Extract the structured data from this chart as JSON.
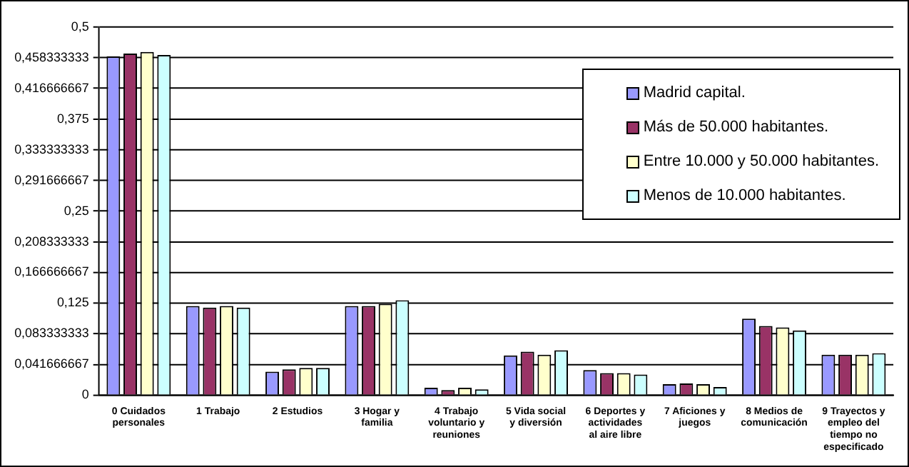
{
  "chart_data": {
    "type": "bar",
    "categories": [
      "0 Cuidados personales",
      "1 Trabajo",
      "2 Estudios",
      "3 Hogar y familia",
      "4 Trabajo voluntario y reuniones",
      "5 Vida social y diversión",
      "6 Deportes y actividades al aire libre",
      "7 Aficiones y juegos",
      "8 Medios de comunicación",
      "9 Trayectos y empleo del tiempo no especificado"
    ],
    "series": [
      {
        "name": "Madrid capital.",
        "color": "#9999ff",
        "values": [
          0.46,
          0.121,
          0.032,
          0.121,
          0.01,
          0.054,
          0.034,
          0.015,
          0.104,
          0.055
        ]
      },
      {
        "name": "Más de 50.000 habitantes.",
        "color": "#993366",
        "values": [
          0.464,
          0.119,
          0.035,
          0.121,
          0.007,
          0.059,
          0.03,
          0.016,
          0.094,
          0.055
        ]
      },
      {
        "name": "Entre 10.000 y 50.000 habitantes.",
        "color": "#ffffcc",
        "values": [
          0.466,
          0.121,
          0.037,
          0.124,
          0.01,
          0.055,
          0.03,
          0.015,
          0.092,
          0.055
        ]
      },
      {
        "name": "Menos de 10.000 habitantes.",
        "color": "#ccffff",
        "values": [
          0.462,
          0.119,
          0.037,
          0.129,
          0.008,
          0.061,
          0.028,
          0.011,
          0.088,
          0.057
        ]
      }
    ],
    "ylim": [
      0,
      0.5
    ],
    "yticks": [
      {
        "value": 0,
        "label": "0"
      },
      {
        "value": 0.041666667,
        "label": "0,041666667"
      },
      {
        "value": 0.083333333,
        "label": "0,083333333"
      },
      {
        "value": 0.125,
        "label": "0,125"
      },
      {
        "value": 0.166666667,
        "label": "0,166666667"
      },
      {
        "value": 0.208333333,
        "label": "0,208333333"
      },
      {
        "value": 0.25,
        "label": "0,25"
      },
      {
        "value": 0.291666667,
        "label": "0,291666667"
      },
      {
        "value": 0.333333333,
        "label": "0,333333333"
      },
      {
        "value": 0.375,
        "label": "0,375"
      },
      {
        "value": 0.416666667,
        "label": "0,416666667"
      },
      {
        "value": 0.458333333,
        "label": "0,458333333"
      },
      {
        "value": 0.5,
        "label": "0,5"
      }
    ],
    "grid": "y",
    "legend": "top right"
  }
}
